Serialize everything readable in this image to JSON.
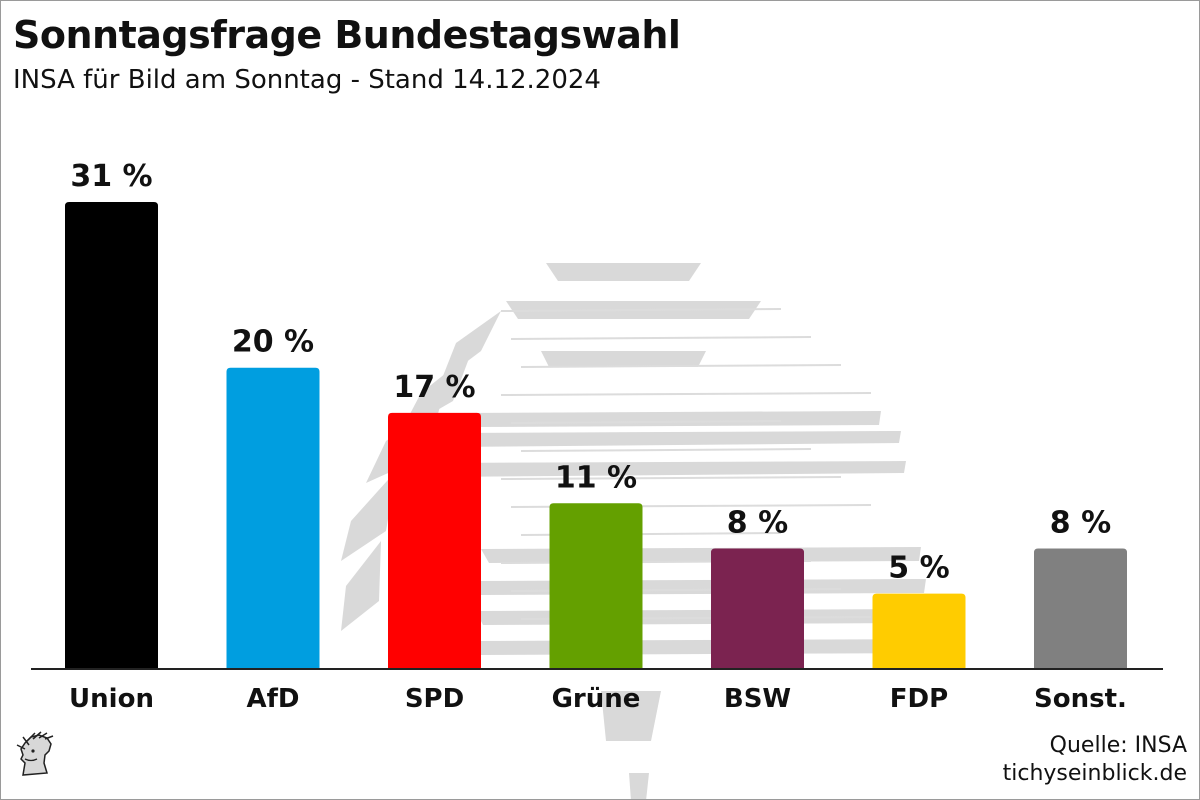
{
  "chart_data": {
    "type": "bar",
    "title": "Sonntagsfrage Bundestagswahl",
    "subtitle": "INSA für Bild am Sonntag - Stand 14.12.2024",
    "categories": [
      "Union",
      "AfD",
      "SPD",
      "Grüne",
      "BSW",
      "FDP",
      "Sonst."
    ],
    "values": [
      31,
      20,
      17,
      11,
      8,
      5,
      8
    ],
    "value_labels": [
      "31 %",
      "20 %",
      "17 %",
      "11 %",
      "8 %",
      "5 %",
      "8 %"
    ],
    "colors": [
      "#000000",
      "#009ee0",
      "#ff0000",
      "#64a000",
      "#7b2350",
      "#ffcc00",
      "#808080"
    ],
    "ylim": [
      0,
      31
    ],
    "grid": false,
    "legend": "none"
  },
  "footer": {
    "source": "Quelle: INSA",
    "site": "tichyseinblick.de"
  },
  "icons": {
    "watermark": "reichstag-dome-watermark-icon",
    "logo": "tichys-einblick-head-logo-icon"
  }
}
